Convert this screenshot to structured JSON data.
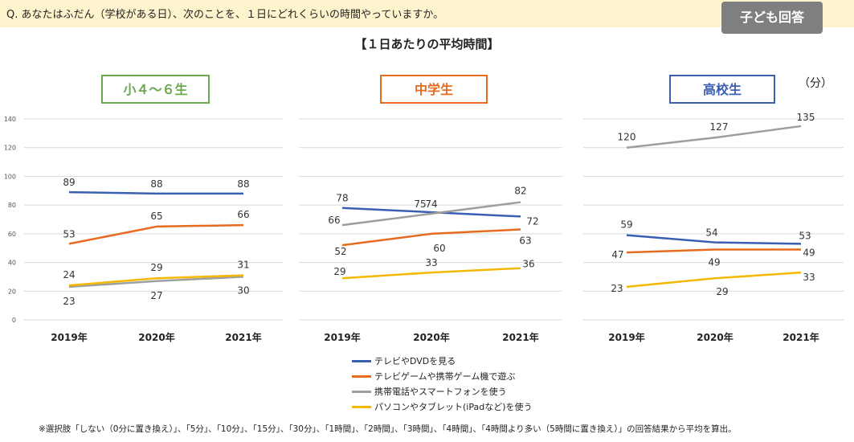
{
  "header": {
    "question": "Q. あなたはふだん（学校がある日）、次のことを、１日にどれくらいの時間やっていますか。",
    "badge": "子ども回答"
  },
  "subtitle": "【１日あたりの平均時間】",
  "unit_label": "（分）",
  "legend": [
    {
      "label": "テレビやDVDを見る",
      "color": "#3a5fb0"
    },
    {
      "label": "テレビゲームや携帯ゲーム機で遊ぶ",
      "color": "#e66b1f"
    },
    {
      "label": "携帯電話やスマートフォンを使う",
      "color": "#9e9e9e"
    },
    {
      "label": "パソコンやタブレット(iPadなど)を使う",
      "color": "#f5b800"
    }
  ],
  "note": "※選択肢「しない（0分に置き換え）」、「5分」、「10分」、「15分」、「30分」、「1時間」、「2時間」、「3時間」、「4時間」、「4時間より多い（5時間に置き換え）」の回答結果から平均を算出。",
  "chart_data": [
    {
      "type": "line",
      "title": "小４～６生",
      "title_color": "#6aa84f",
      "x": [
        "2019年",
        "2020年",
        "2021年"
      ],
      "ylim": [
        0,
        140
      ],
      "yticks": [
        0,
        20,
        40,
        60,
        80,
        100,
        120,
        140
      ],
      "grid": true,
      "series": [
        {
          "name": "テレビやDVDを見る",
          "color": "#3a5fb0",
          "values": [
            89,
            88,
            88
          ]
        },
        {
          "name": "テレビゲームや携帯ゲーム機で遊ぶ",
          "color": "#e66b1f",
          "values": [
            53,
            65,
            66
          ]
        },
        {
          "name": "携帯電話やスマートフォンを使う",
          "color": "#9e9e9e",
          "values": [
            23,
            27,
            30
          ]
        },
        {
          "name": "パソコンやタブレット(iPadなど)を使う",
          "color": "#f5b800",
          "values": [
            24,
            29,
            31
          ]
        }
      ]
    },
    {
      "type": "line",
      "title": "中学生",
      "title_color": "#e66b1f",
      "x": [
        "2019年",
        "2020年",
        "2021年"
      ],
      "ylim": [
        0,
        140
      ],
      "grid": true,
      "series": [
        {
          "name": "テレビやDVDを見る",
          "color": "#3a5fb0",
          "values": [
            78,
            75,
            72
          ]
        },
        {
          "name": "テレビゲームや携帯ゲーム機で遊ぶ",
          "color": "#e66b1f",
          "values": [
            52,
            60,
            63
          ]
        },
        {
          "name": "携帯電話やスマートフォンを使う",
          "color": "#9e9e9e",
          "values": [
            66,
            74,
            82
          ]
        },
        {
          "name": "パソコンやタブレット(iPadなど)を使う",
          "color": "#f5b800",
          "values": [
            29,
            33,
            36
          ]
        }
      ]
    },
    {
      "type": "line",
      "title": "高校生",
      "title_color": "#3a5fb0",
      "x": [
        "2019年",
        "2020年",
        "2021年"
      ],
      "ylim": [
        0,
        140
      ],
      "grid": true,
      "series": [
        {
          "name": "テレビやDVDを見る",
          "color": "#3a5fb0",
          "values": [
            59,
            54,
            53
          ]
        },
        {
          "name": "テレビゲームや携帯ゲーム機で遊ぶ",
          "color": "#e66b1f",
          "values": [
            47,
            49,
            49
          ]
        },
        {
          "name": "携帯電話やスマートフォンを使う",
          "color": "#9e9e9e",
          "values": [
            120,
            127,
            135
          ]
        },
        {
          "name": "パソコンやタブレット(iPadなど)を使う",
          "color": "#f5b800",
          "values": [
            23,
            29,
            33
          ]
        }
      ]
    }
  ]
}
